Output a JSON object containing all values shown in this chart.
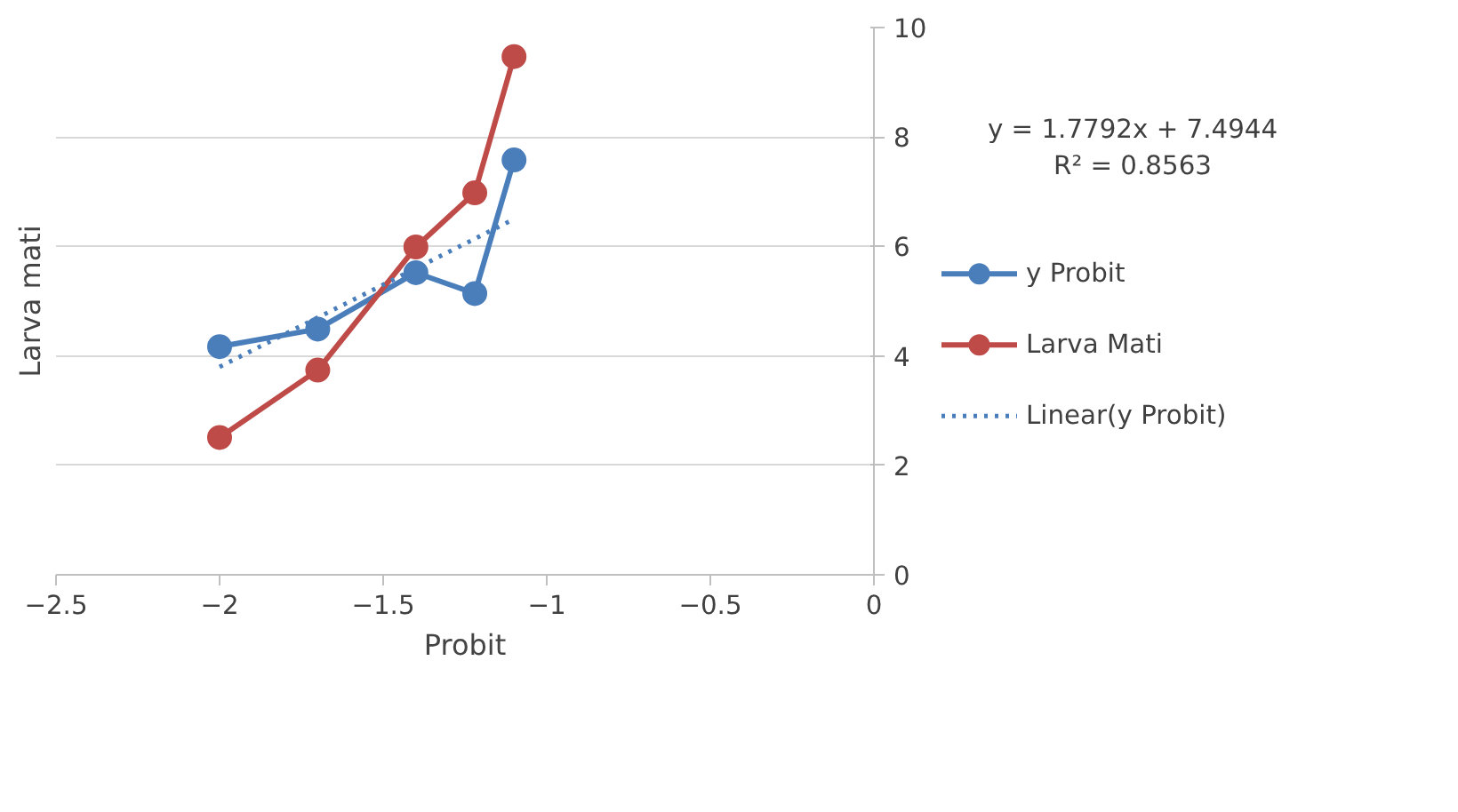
{
  "chart_data": {
    "type": "line",
    "xlabel": "Probit",
    "ylabel": "Larva mati",
    "xlim": [
      -2.5,
      0
    ],
    "xticks": [
      -2.5,
      -2,
      -1.5,
      -1,
      -0.5,
      0
    ],
    "ylim": [
      0,
      10
    ],
    "yticks": [
      0,
      2,
      4,
      6,
      8,
      10
    ],
    "grid": "y",
    "legend": "right",
    "marker": "circle",
    "series": [
      {
        "name": "y Probit",
        "color": "#4a7ebb",
        "x": [
          -2.0,
          -1.7,
          -1.4,
          -1.22,
          -1.1
        ],
        "values": [
          4.17,
          4.49,
          5.52,
          5.14,
          7.58
        ]
      },
      {
        "name": "Larva Mati",
        "color": "#be4b48",
        "x": [
          -2.0,
          -1.7,
          -1.4,
          -1.22,
          -1.1
        ],
        "values": [
          2.51,
          3.74,
          5.99,
          6.98,
          9.47
        ]
      },
      {
        "name": "Linear(y Probit)",
        "color": "#4a7ebb",
        "marker": "none",
        "line_style": "dotted",
        "x": [
          -2.0,
          -1.1
        ],
        "values": [
          3.8,
          6.5
        ]
      }
    ],
    "annotations": [
      "y = 1.7792x + 7.4944\nR² = 0.8563"
    ]
  }
}
